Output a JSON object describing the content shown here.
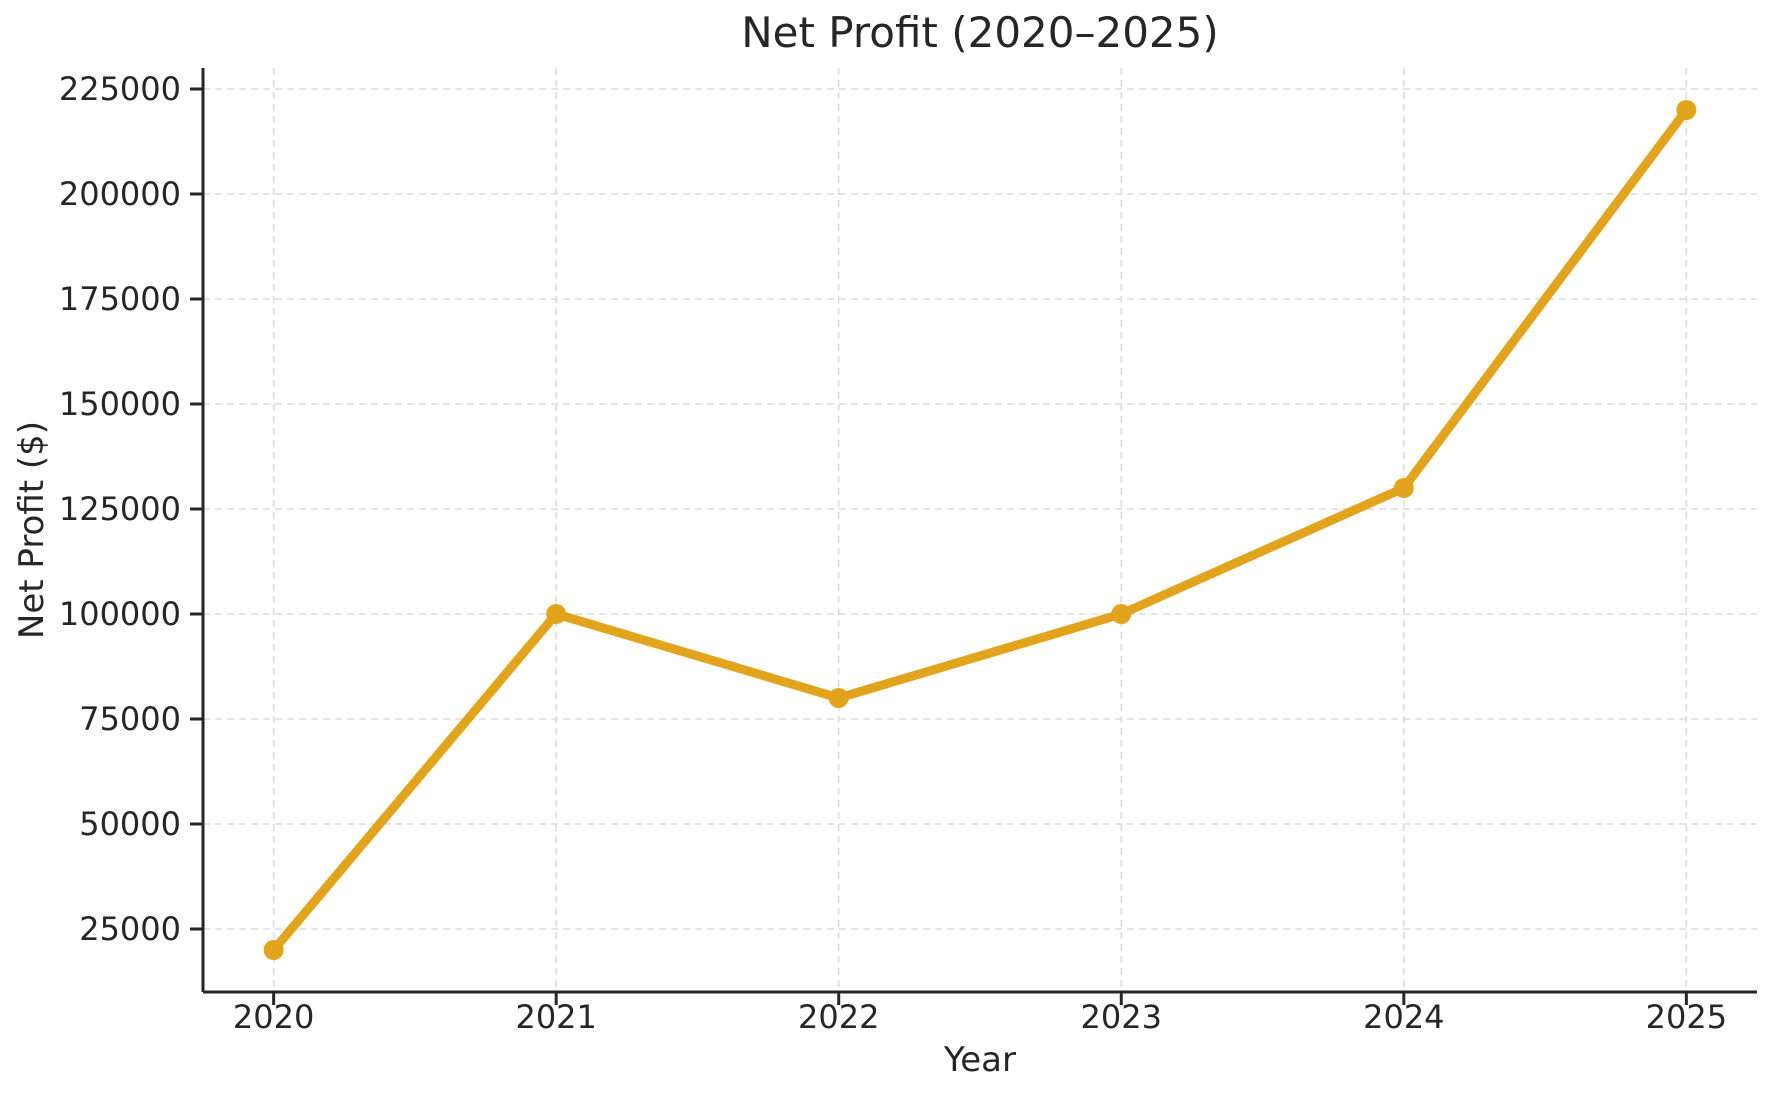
{
  "chart_data": {
    "type": "line",
    "title": "Net Profit (2020–2025)",
    "xlabel": "Year",
    "ylabel": "Net Profit ($)",
    "x": [
      2020,
      2021,
      2022,
      2023,
      2024,
      2025
    ],
    "series": [
      {
        "name": "Net Profit",
        "values": [
          20000,
          100000,
          80000,
          100000,
          130000,
          220000
        ],
        "color": "#E2A41C",
        "marker": "circle"
      }
    ],
    "xticks": [
      2020,
      2021,
      2022,
      2023,
      2024,
      2025
    ],
    "yticks": [
      25000,
      50000,
      75000,
      100000,
      125000,
      150000,
      175000,
      200000,
      225000
    ],
    "xlim": [
      2019.75,
      2025.25
    ],
    "ylim": [
      10000,
      230000
    ],
    "grid": true,
    "grid_style": "dashed",
    "grid_color": "#DCDCDC",
    "axis_color": "#262626",
    "text_color": "#262626",
    "background": "#FFFFFF",
    "legend_position": "none"
  }
}
